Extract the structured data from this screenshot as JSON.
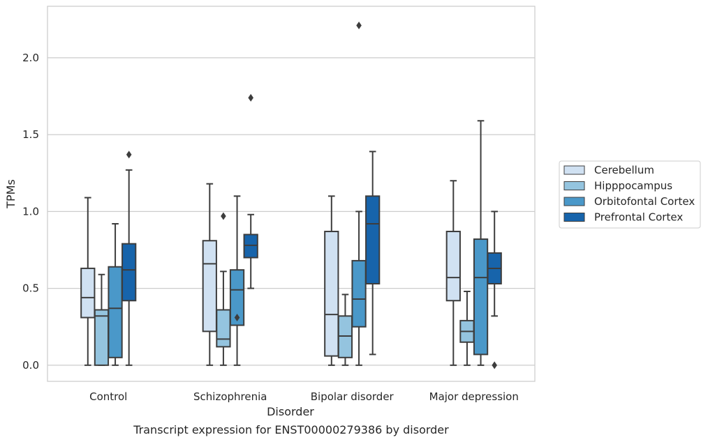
{
  "chart_data": {
    "type": "box",
    "title": "Transcript expression for ENST00000279386 by disorder",
    "xlabel": "Disorder",
    "ylabel": "TPMs",
    "ylim": [
      -0.105,
      2.335
    ],
    "yticks": [
      "0.0",
      "0.5",
      "1.0",
      "1.5",
      "2.0"
    ],
    "grid": true,
    "legend_position": "right",
    "categories": [
      "Control",
      "Schizophrenia",
      "Bipolar disorder",
      "Major depression"
    ],
    "series": [
      {
        "name": "Cerebellum",
        "color": "#d0e1f2",
        "boxes": [
          {
            "whisker_low": 0.0,
            "q1": 0.31,
            "median": 0.44,
            "q3": 0.63,
            "whisker_high": 1.09,
            "outliers": []
          },
          {
            "whisker_low": 0.0,
            "q1": 0.22,
            "median": 0.66,
            "q3": 0.81,
            "whisker_high": 1.18,
            "outliers": []
          },
          {
            "whisker_low": 0.0,
            "q1": 0.06,
            "median": 0.33,
            "q3": 0.87,
            "whisker_high": 1.1,
            "outliers": []
          },
          {
            "whisker_low": 0.0,
            "q1": 0.42,
            "median": 0.57,
            "q3": 0.87,
            "whisker_high": 1.2,
            "outliers": []
          }
        ]
      },
      {
        "name": "Hipppocampus",
        "color": "#94c4df",
        "boxes": [
          {
            "whisker_low": 0.0,
            "q1": 0.0,
            "median": 0.32,
            "q3": 0.36,
            "whisker_high": 0.59,
            "outliers": []
          },
          {
            "whisker_low": 0.0,
            "q1": 0.12,
            "median": 0.17,
            "q3": 0.36,
            "whisker_high": 0.61,
            "outliers": [
              0.97
            ]
          },
          {
            "whisker_low": 0.0,
            "q1": 0.05,
            "median": 0.19,
            "q3": 0.32,
            "whisker_high": 0.46,
            "outliers": []
          },
          {
            "whisker_low": 0.0,
            "q1": 0.15,
            "median": 0.22,
            "q3": 0.29,
            "whisker_high": 0.48,
            "outliers": []
          }
        ]
      },
      {
        "name": "Orbitofontal Cortex",
        "color": "#4a98c9",
        "boxes": [
          {
            "whisker_low": 0.0,
            "q1": 0.05,
            "median": 0.37,
            "q3": 0.64,
            "whisker_high": 0.92,
            "outliers": []
          },
          {
            "whisker_low": 0.0,
            "q1": 0.26,
            "median": 0.49,
            "q3": 0.62,
            "whisker_high": 1.1,
            "outliers": [
              0.31
            ]
          },
          {
            "whisker_low": 0.0,
            "q1": 0.25,
            "median": 0.43,
            "q3": 0.68,
            "whisker_high": 1.0,
            "outliers": [
              2.21
            ]
          },
          {
            "whisker_low": 0.0,
            "q1": 0.07,
            "median": 0.57,
            "q3": 0.82,
            "whisker_high": 1.59,
            "outliers": []
          }
        ]
      },
      {
        "name": "Prefrontal Cortex",
        "color": "#1764ab",
        "boxes": [
          {
            "whisker_low": 0.0,
            "q1": 0.42,
            "median": 0.62,
            "q3": 0.79,
            "whisker_high": 1.27,
            "outliers": [
              1.37
            ]
          },
          {
            "whisker_low": 0.5,
            "q1": 0.7,
            "median": 0.78,
            "q3": 0.85,
            "whisker_high": 0.98,
            "outliers": [
              1.74
            ]
          },
          {
            "whisker_low": 0.07,
            "q1": 0.53,
            "median": 0.92,
            "q3": 1.1,
            "whisker_high": 1.39,
            "outliers": []
          },
          {
            "whisker_low": 0.32,
            "q1": 0.53,
            "median": 0.63,
            "q3": 0.73,
            "whisker_high": 1.0,
            "outliers": [
              0.0
            ]
          }
        ]
      }
    ]
  }
}
